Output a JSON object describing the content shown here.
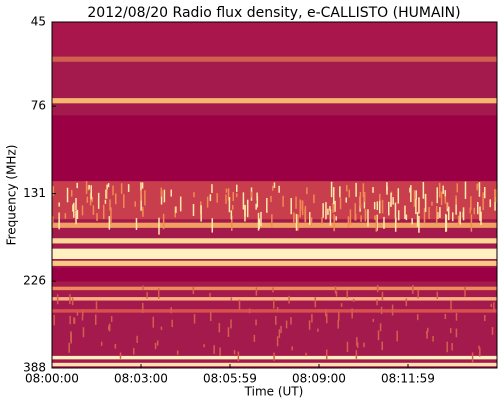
{
  "chart_data": {
    "type": "spectrogram",
    "title": "2012/08/20  Radio flux density, e-CALLISTO (HUMAIN)",
    "xlabel": "Time (UT)",
    "ylabel": "Frequency (MHz)",
    "xticks": [
      "08:00:00",
      "08:03:00",
      "08:05:59",
      "08:09:00",
      "08:11:59"
    ],
    "ylim": [
      45,
      388
    ],
    "yticks": [
      45,
      76,
      131,
      226,
      388
    ],
    "yscale": "log",
    "color": "#9b0045"
  }
}
